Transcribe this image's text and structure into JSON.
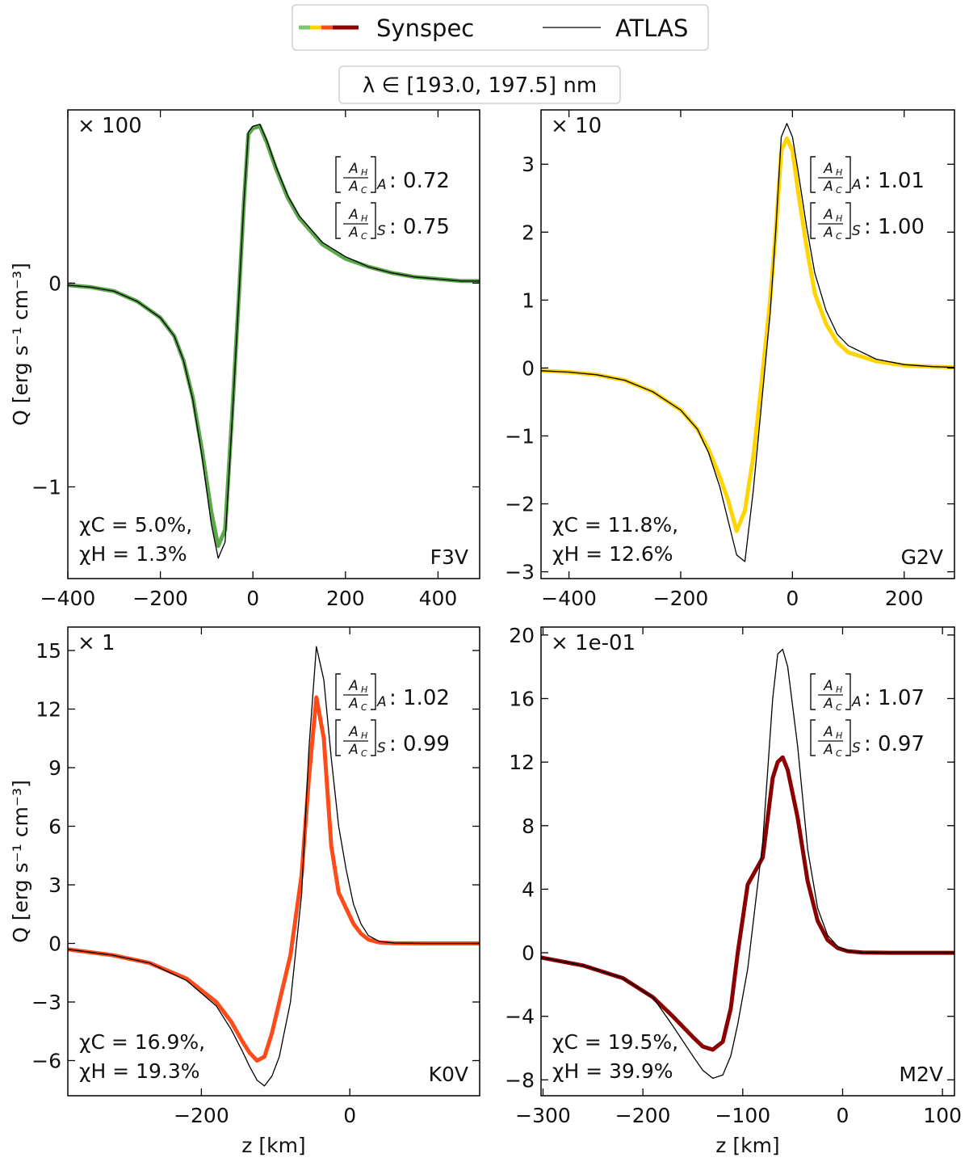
{
  "legend": {
    "synspec_label": "Synspec",
    "atlas_label": "ATLAS",
    "synspec_colors": [
      "#7bc96f",
      "#ffd400",
      "#ff4a1a",
      "#8b0000"
    ],
    "atlas_color": "#000000"
  },
  "range_label": "λ ∈ [193.0, 197.5] nm",
  "ratio_prefix_A": "A",
  "ratio_prefix_S": "S",
  "chart_data": [
    {
      "type": "line",
      "star": "F3V",
      "scale": "× 100",
      "color": "#5aa84a",
      "ratio_A": "0.72",
      "ratio_S": "0.75",
      "chi_C": "χC = 5.0%,",
      "chi_H": "χH = 1.3%",
      "ylabel": "Q [erg s⁻¹ cm⁻³]",
      "xlabel": "",
      "xlim": [
        -400,
        490
      ],
      "ylim": [
        -1.45,
        0.85
      ],
      "xticks": [
        -400,
        -200,
        0,
        200,
        400
      ],
      "yticks": [
        -1,
        0
      ],
      "series": [
        {
          "name": "Synspec",
          "x": [
            -400,
            -350,
            -300,
            -250,
            -200,
            -170,
            -150,
            -130,
            -110,
            -90,
            -75,
            -60,
            -45,
            -30,
            -20,
            -10,
            0,
            15,
            30,
            50,
            75,
            100,
            150,
            200,
            250,
            300,
            350,
            400,
            450,
            490
          ],
          "y": [
            -0.01,
            -0.02,
            -0.04,
            -0.09,
            -0.17,
            -0.26,
            -0.38,
            -0.56,
            -0.82,
            -1.12,
            -1.29,
            -1.21,
            -0.65,
            -0.05,
            0.38,
            0.73,
            0.76,
            0.77,
            0.69,
            0.56,
            0.42,
            0.32,
            0.19,
            0.12,
            0.08,
            0.05,
            0.03,
            0.02,
            0.01,
            0.01
          ]
        },
        {
          "name": "ATLAS",
          "x": [
            -400,
            -350,
            -300,
            -250,
            -200,
            -170,
            -150,
            -130,
            -110,
            -90,
            -75,
            -60,
            -45,
            -30,
            -20,
            -10,
            0,
            15,
            30,
            50,
            75,
            100,
            150,
            200,
            250,
            300,
            350,
            400,
            450,
            490
          ],
          "y": [
            -0.01,
            -0.02,
            -0.04,
            -0.09,
            -0.17,
            -0.26,
            -0.38,
            -0.57,
            -0.85,
            -1.18,
            -1.35,
            -1.27,
            -0.68,
            -0.05,
            0.38,
            0.74,
            0.77,
            0.78,
            0.7,
            0.57,
            0.43,
            0.33,
            0.2,
            0.13,
            0.08,
            0.05,
            0.03,
            0.02,
            0.01,
            0.01
          ]
        }
      ]
    },
    {
      "type": "line",
      "star": "G2V",
      "scale": "× 10",
      "color": "#ffd400",
      "ratio_A": "1.01",
      "ratio_S": "1.00",
      "chi_C": "χC = 11.8%,",
      "chi_H": "χH = 12.6%",
      "ylabel": "",
      "xlabel": "",
      "xlim": [
        -450,
        290
      ],
      "ylim": [
        -3.1,
        3.8
      ],
      "xticks": [
        -400,
        -200,
        0,
        200
      ],
      "yticks": [
        -3,
        -2,
        -1,
        0,
        1,
        2,
        3
      ],
      "series": [
        {
          "name": "Synspec",
          "x": [
            -450,
            -400,
            -350,
            -300,
            -250,
            -200,
            -170,
            -150,
            -130,
            -115,
            -100,
            -85,
            -70,
            -55,
            -40,
            -30,
            -20,
            -10,
            0,
            10,
            25,
            40,
            60,
            80,
            100,
            150,
            200,
            250,
            290
          ],
          "y": [
            -0.04,
            -0.06,
            -0.1,
            -0.18,
            -0.35,
            -0.62,
            -0.9,
            -1.2,
            -1.6,
            -1.95,
            -2.4,
            -2.1,
            -1.3,
            -0.2,
            1.0,
            2.0,
            3.2,
            3.38,
            3.2,
            2.6,
            1.8,
            1.1,
            0.65,
            0.38,
            0.23,
            0.1,
            0.04,
            0.02,
            0.01
          ]
        },
        {
          "name": "ATLAS",
          "x": [
            -450,
            -400,
            -350,
            -300,
            -250,
            -200,
            -170,
            -150,
            -130,
            -115,
            -100,
            -85,
            -70,
            -55,
            -40,
            -30,
            -20,
            -10,
            0,
            10,
            25,
            40,
            60,
            80,
            100,
            150,
            200,
            250,
            290
          ],
          "y": [
            -0.04,
            -0.06,
            -0.1,
            -0.18,
            -0.35,
            -0.62,
            -0.9,
            -1.25,
            -1.75,
            -2.25,
            -2.75,
            -2.85,
            -1.8,
            -0.5,
            0.8,
            2.0,
            3.4,
            3.6,
            3.4,
            2.9,
            2.1,
            1.4,
            0.85,
            0.5,
            0.33,
            0.13,
            0.05,
            0.02,
            0.01
          ]
        }
      ]
    },
    {
      "type": "line",
      "star": "K0V",
      "scale": "× 1",
      "color": "#ff4a1a",
      "ratio_A": "1.02",
      "ratio_S": "0.99",
      "chi_C": "χC = 16.9%,",
      "chi_H": "χH = 19.3%",
      "ylabel": "Q [erg s⁻¹ cm⁻³]",
      "xlabel": "z [km]",
      "xlim": [
        -380,
        175
      ],
      "ylim": [
        -7.8,
        16.2
      ],
      "xticks": [
        -200,
        0
      ],
      "yticks": [
        -6,
        -3,
        0,
        3,
        6,
        9,
        12,
        15
      ],
      "series": [
        {
          "name": "Synspec",
          "x": [
            -380,
            -320,
            -270,
            -220,
            -180,
            -160,
            -145,
            -135,
            -125,
            -115,
            -105,
            -95,
            -80,
            -65,
            -55,
            -45,
            -35,
            -25,
            -15,
            -5,
            5,
            15,
            25,
            40,
            60,
            100,
            175
          ],
          "y": [
            -0.3,
            -0.6,
            -1.0,
            -1.8,
            -3.0,
            -4.0,
            -5.0,
            -5.6,
            -6.0,
            -5.8,
            -4.6,
            -3.0,
            -0.6,
            3.5,
            8.5,
            12.6,
            10.5,
            5.0,
            2.6,
            1.8,
            1.0,
            0.5,
            0.2,
            0.05,
            0.01,
            0,
            0
          ]
        },
        {
          "name": "ATLAS",
          "x": [
            -380,
            -320,
            -270,
            -220,
            -180,
            -160,
            -145,
            -135,
            -125,
            -115,
            -105,
            -95,
            -80,
            -65,
            -55,
            -45,
            -35,
            -25,
            -15,
            -5,
            5,
            15,
            25,
            40,
            60,
            100,
            175
          ],
          "y": [
            -0.3,
            -0.6,
            -1.0,
            -1.9,
            -3.2,
            -4.4,
            -5.5,
            -6.3,
            -7.0,
            -7.3,
            -6.8,
            -5.8,
            -3.0,
            2.5,
            10.0,
            15.2,
            13.5,
            9.5,
            6.0,
            3.8,
            2.0,
            1.0,
            0.4,
            0.1,
            0.02,
            0,
            0
          ]
        }
      ]
    },
    {
      "type": "line",
      "star": "M2V",
      "scale": "× 1e-01",
      "color": "#8b0000",
      "ratio_A": "1.07",
      "ratio_S": "0.97",
      "chi_C": "χC = 19.5%,",
      "chi_H": "χH = 39.9%",
      "ylabel": "",
      "xlabel": "z [km]",
      "xlim": [
        -302,
        112
      ],
      "ylim": [
        -9,
        20.5
      ],
      "xticks": [
        -300,
        -200,
        -100,
        0,
        100
      ],
      "yticks": [
        -8,
        -4,
        0,
        4,
        8,
        12,
        16,
        20
      ],
      "series": [
        {
          "name": "Synspec",
          "x": [
            -302,
            -260,
            -220,
            -190,
            -170,
            -150,
            -140,
            -130,
            -120,
            -112,
            -105,
            -95,
            -80,
            -70,
            -65,
            -60,
            -55,
            -45,
            -35,
            -25,
            -15,
            -5,
            5,
            20,
            50,
            112
          ],
          "y": [
            -0.3,
            -0.8,
            -1.6,
            -2.8,
            -4.0,
            -5.3,
            -5.9,
            -6.1,
            -5.6,
            -3.5,
            0.0,
            4.3,
            6.0,
            11.0,
            12.0,
            12.3,
            11.5,
            8.5,
            4.5,
            2.0,
            0.8,
            0.3,
            0.1,
            0.02,
            0,
            0
          ]
        },
        {
          "name": "ATLAS",
          "x": [
            -302,
            -260,
            -220,
            -190,
            -170,
            -150,
            -140,
            -130,
            -120,
            -112,
            -105,
            -95,
            -80,
            -70,
            -65,
            -60,
            -55,
            -45,
            -35,
            -25,
            -15,
            -5,
            5,
            20,
            50,
            112
          ],
          "y": [
            -0.3,
            -0.8,
            -1.6,
            -2.8,
            -4.6,
            -6.5,
            -7.4,
            -7.9,
            -7.7,
            -6.5,
            -4.5,
            -1.0,
            7.0,
            16.0,
            18.8,
            19.1,
            18.0,
            13.0,
            6.5,
            2.8,
            1.1,
            0.4,
            0.1,
            0.02,
            0,
            0
          ]
        }
      ]
    }
  ]
}
